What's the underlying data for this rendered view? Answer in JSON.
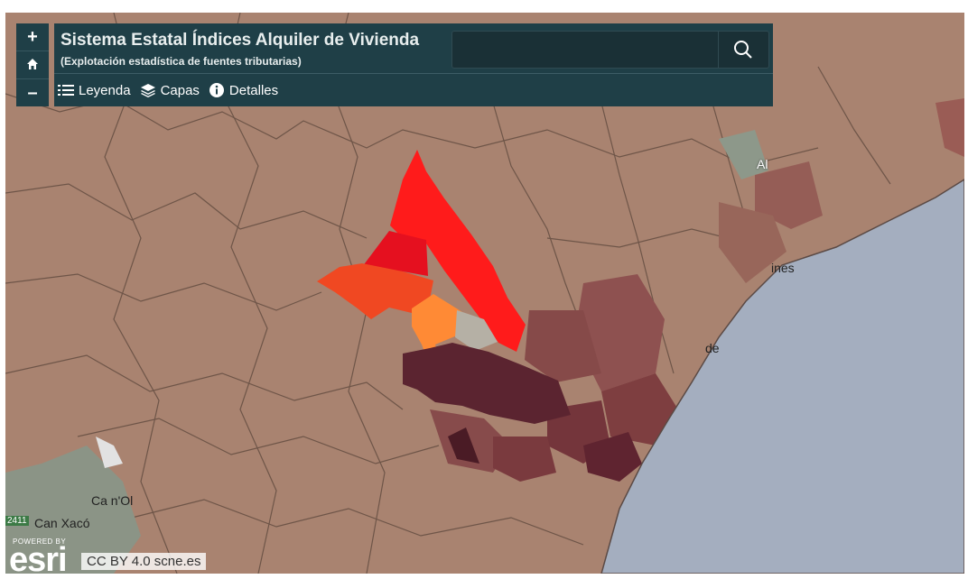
{
  "header": {
    "title": "Sistema Estatal Índices Alquiler de Vivienda",
    "subtitle": "(Explotación estadística de fuentes tributarias)"
  },
  "zoom": {
    "in": "+",
    "out": "–"
  },
  "menu": {
    "legend": "Leyenda",
    "layers": "Capas",
    "details": "Detalles"
  },
  "map_labels": [
    "Al",
    "ines",
    "de",
    "Ca n'Ol",
    "Can Xacó",
    "2411"
  ],
  "attribution": {
    "powered": "POWERED BY",
    "logo": "esri",
    "license": "CC BY 4.0 scne.es"
  }
}
